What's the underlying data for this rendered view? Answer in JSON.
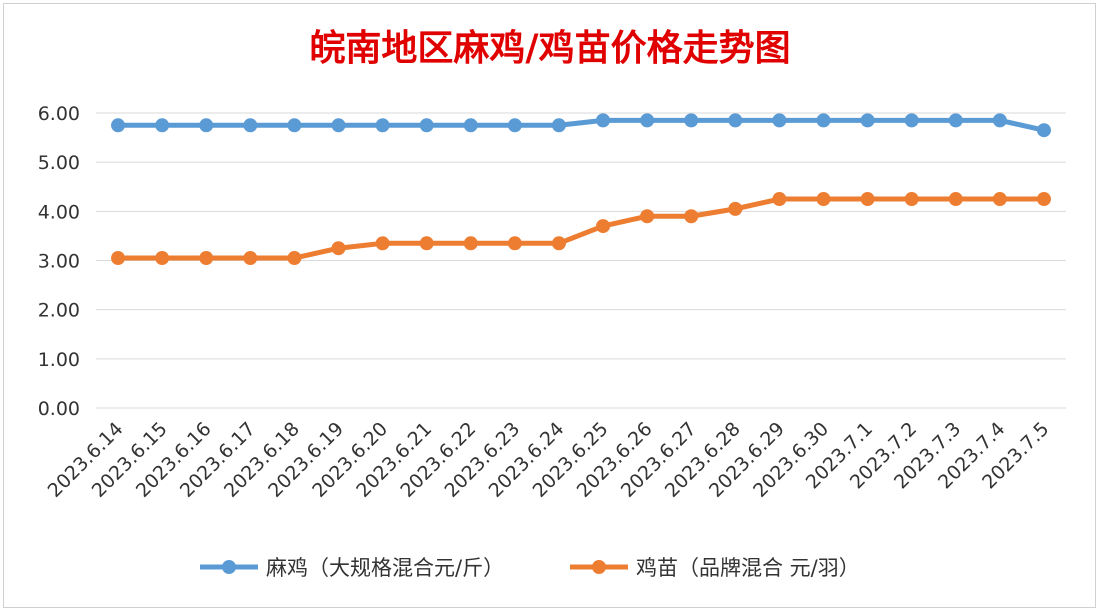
{
  "chart_data": {
    "type": "line",
    "title": "皖南地区麻鸡/鸡苗价格走势图",
    "categories": [
      "2023.6.14",
      "2023.6.15",
      "2023.6.16",
      "2023.6.17",
      "2023.6.18",
      "2023.6.19",
      "2023.6.20",
      "2023.6.21",
      "2023.6.22",
      "2023.6.23",
      "2023.6.24",
      "2023.6.25",
      "2023.6.26",
      "2023.6.27",
      "2023.6.28",
      "2023.6.29",
      "2023.6.30",
      "2023.7.1",
      "2023.7.2",
      "2023.7.3",
      "2023.7.4",
      "2023.7.5"
    ],
    "y_ticks": [
      "0.00",
      "1.00",
      "2.00",
      "3.00",
      "4.00",
      "5.00",
      "6.00"
    ],
    "ylim": [
      0,
      6
    ],
    "grid": true,
    "legend_position": "bottom",
    "series": [
      {
        "name": "麻鸡（大规格混合元/斤）",
        "color": "#5b9bd5",
        "values": [
          5.75,
          5.75,
          5.75,
          5.75,
          5.75,
          5.75,
          5.75,
          5.75,
          5.75,
          5.75,
          5.75,
          5.85,
          5.85,
          5.85,
          5.85,
          5.85,
          5.85,
          5.85,
          5.85,
          5.85,
          5.85,
          5.65
        ]
      },
      {
        "name": "鸡苗（品牌混合 元/羽）",
        "color": "#ed7d31",
        "values": [
          3.05,
          3.05,
          3.05,
          3.05,
          3.05,
          3.25,
          3.35,
          3.35,
          3.35,
          3.35,
          3.35,
          3.7,
          3.9,
          3.9,
          4.05,
          4.25,
          4.25,
          4.25,
          4.25,
          4.25,
          4.25,
          4.25
        ]
      }
    ]
  }
}
